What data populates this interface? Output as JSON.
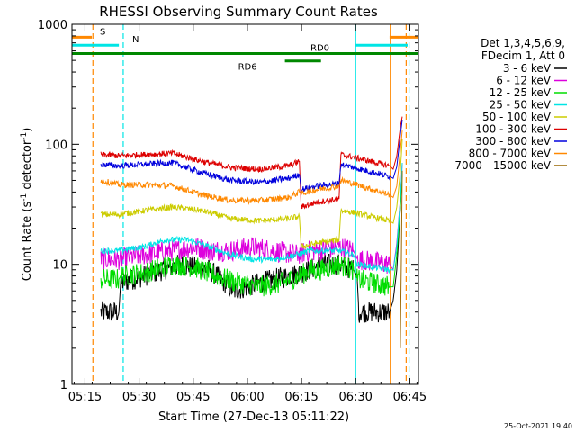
{
  "chart_data": {
    "type": "line",
    "title": "RHESSI Observing Summary Count Rates",
    "xlabel": "Start Time (27-Dec-13 05:11:22)",
    "ylabel_main": "Count Rate (s",
    "ylabel_sup": "-1",
    "ylabel_mid": " detector",
    "ylabel_end": ")",
    "yscale": "log",
    "xlim_minutes": [
      0,
      96
    ],
    "ylim": [
      1,
      1000
    ],
    "x_ticks": [
      {
        "t": 3.6,
        "label": "05:15"
      },
      {
        "t": 18.6,
        "label": "05:30"
      },
      {
        "t": 33.6,
        "label": "05:45"
      },
      {
        "t": 48.6,
        "label": "06:00"
      },
      {
        "t": 63.6,
        "label": "06:15"
      },
      {
        "t": 78.6,
        "label": "06:30"
      },
      {
        "t": 93.6,
        "label": "06:45"
      }
    ],
    "y_ticks": [
      {
        "v": 1,
        "label": "1"
      },
      {
        "v": 10,
        "label": "10"
      },
      {
        "v": 100,
        "label": "100"
      },
      {
        "v": 1000,
        "label": "1000"
      }
    ],
    "legend_header": [
      "Det 1,3,4,5,6,9,",
      "FDecim 1, Att 0"
    ],
    "series": [
      {
        "name": "3 - 6 keV",
        "color": "#000000",
        "x": [
          8,
          13,
          13.5,
          20,
          30,
          38,
          45,
          52,
          60,
          66,
          69,
          74,
          78,
          79,
          79.5,
          88,
          89,
          90,
          91,
          91.5
        ],
        "values": [
          4,
          4,
          7,
          8,
          10,
          9,
          6,
          7,
          8,
          9,
          10,
          10,
          9,
          8,
          4,
          4,
          5,
          9,
          30,
          60
        ]
      },
      {
        "name": "6 - 12 keV",
        "color": "#dd00dd",
        "x": [
          8,
          13,
          20,
          28,
          34,
          38,
          44,
          50,
          56,
          62,
          66,
          69,
          74,
          78,
          79,
          88,
          89,
          90,
          91,
          91.5
        ],
        "values": [
          11,
          11,
          12,
          13,
          14,
          13,
          13,
          14,
          13,
          12,
          13,
          13,
          14,
          13,
          11,
          10,
          9,
          15,
          35,
          70
        ]
      },
      {
        "name": "12 - 25 keV",
        "color": "#00dd00",
        "x": [
          8,
          13,
          13.5,
          20,
          28,
          34,
          40,
          46,
          52,
          58,
          63,
          66,
          69,
          74,
          78,
          79,
          88,
          89,
          90,
          91,
          91.5
        ],
        "values": [
          7.5,
          7.5,
          8,
          8.5,
          10,
          9.5,
          8,
          7,
          6.5,
          7,
          8,
          9,
          9,
          10,
          9,
          7.5,
          6.5,
          6.5,
          12,
          30,
          60
        ]
      },
      {
        "name": "25 - 50 keV",
        "color": "#00e5e5",
        "x": [
          8,
          13,
          20,
          26,
          32,
          38,
          44,
          50,
          56,
          62,
          66,
          69,
          74,
          78,
          79,
          88,
          89,
          90,
          91,
          91.5
        ],
        "values": [
          13,
          13,
          14,
          16,
          16,
          14,
          12,
          11,
          11,
          12,
          13,
          13,
          13,
          12,
          10,
          9,
          9,
          14,
          35,
          70
        ]
      },
      {
        "name": "50 - 100 keV",
        "color": "#cccc00",
        "x": [
          8,
          13,
          20,
          28,
          36,
          44,
          52,
          60,
          63,
          63.5,
          68,
          74,
          74.5,
          78,
          88,
          89,
          90,
          91,
          91.5
        ],
        "values": [
          26,
          26,
          28,
          30,
          28,
          24,
          23,
          24,
          25,
          14,
          15,
          16,
          28,
          27,
          23,
          22,
          30,
          60,
          110
        ]
      },
      {
        "name": "100 - 300 keV",
        "color": "#dd0000",
        "x": [
          8,
          13,
          20,
          28,
          36,
          44,
          52,
          60,
          63,
          63.5,
          68,
          74,
          74.5,
          78,
          88,
          89,
          90,
          91,
          91.5
        ],
        "values": [
          82,
          80,
          82,
          84,
          72,
          64,
          62,
          66,
          72,
          30,
          33,
          35,
          82,
          78,
          66,
          62,
          80,
          140,
          170
        ]
      },
      {
        "name": "300 - 800 keV",
        "color": "#0000dd",
        "x": [
          8,
          13,
          20,
          28,
          36,
          44,
          52,
          60,
          63,
          63.5,
          68,
          74,
          74.5,
          78,
          88,
          89,
          90,
          91,
          91.5
        ],
        "values": [
          68,
          66,
          68,
          70,
          58,
          50,
          48,
          52,
          56,
          42,
          45,
          47,
          68,
          64,
          54,
          52,
          65,
          120,
          160
        ]
      },
      {
        "name": "800 - 7000 keV",
        "color": "#ff8800",
        "x": [
          8,
          13,
          20,
          28,
          36,
          44,
          52,
          60,
          63,
          63.5,
          68,
          74,
          74.5,
          78,
          88,
          89,
          90,
          91,
          91.5
        ],
        "values": [
          50,
          46,
          46,
          45,
          38,
          34,
          34,
          36,
          40,
          39,
          42,
          45,
          50,
          47,
          38,
          36,
          45,
          90,
          130
        ]
      },
      {
        "name": "7000 - 15000 keV",
        "color": "#996600",
        "x": [
          91,
          91.5
        ],
        "values": [
          2,
          60
        ]
      }
    ],
    "flags": [
      {
        "label": "S",
        "color": "#ff8800",
        "segments": [
          [
            0,
            5.5
          ],
          [
            88,
            96
          ]
        ],
        "y_value": 780
      },
      {
        "label": "N",
        "color": "#00e5e5",
        "segments": [
          [
            0,
            13
          ],
          [
            78.5,
            93
          ]
        ],
        "y_value": 670
      },
      {
        "label": "RD0",
        "color": "#008800",
        "segments": [
          [
            0,
            96
          ]
        ],
        "y_value": 570
      },
      {
        "label": "RD6",
        "color": "#008800",
        "segments": [
          [
            59,
            69
          ]
        ],
        "y_value": 495
      }
    ],
    "vlines": [
      {
        "t": 5.8,
        "color": "#ff8800",
        "dash": true
      },
      {
        "t": 14.2,
        "color": "#00e5e5",
        "dash": true
      },
      {
        "t": 78.6,
        "color": "#00e5e5",
        "dash": false
      },
      {
        "t": 88.2,
        "color": "#ff8800",
        "dash": false
      },
      {
        "t": 92.6,
        "color": "#ff8800",
        "dash": true
      },
      {
        "t": 93.4,
        "color": "#00e5e5",
        "dash": true
      }
    ],
    "grid": false,
    "legend_position": "right",
    "footer_timestamp": "25-Oct-2021 19:40"
  }
}
